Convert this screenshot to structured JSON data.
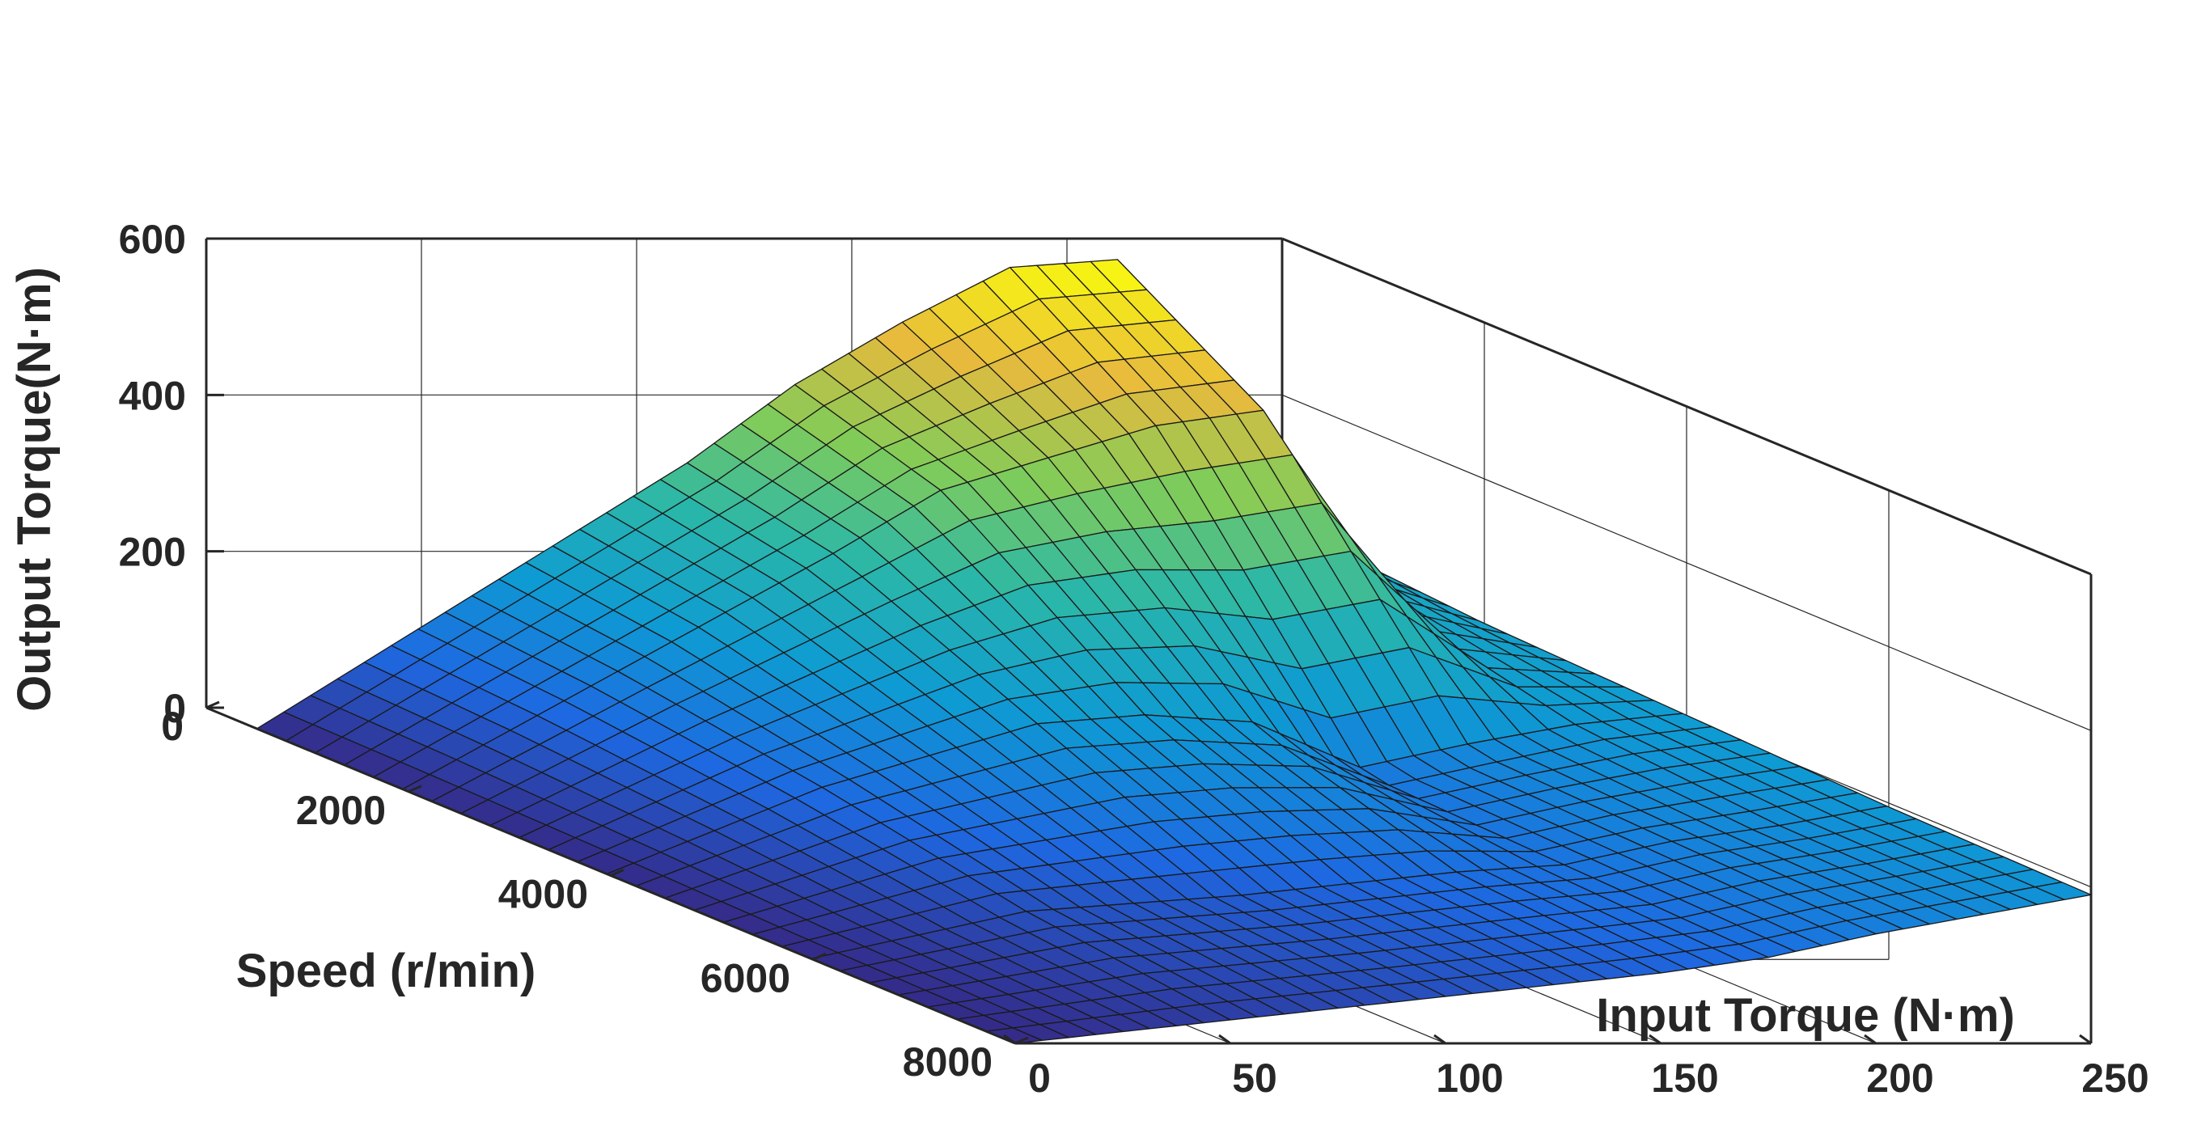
{
  "chart_data": {
    "type": "surface",
    "title": "",
    "xlabel": "Speed (r/min)",
    "ylabel": "Input Torque (N·m)",
    "zlabel": "Output Torque(N·m)",
    "x_ticks": [
      0,
      2000,
      4000,
      6000,
      8000
    ],
    "y_ticks": [
      0,
      50,
      100,
      150,
      200,
      250
    ],
    "z_ticks": [
      0,
      200,
      400,
      600
    ],
    "xlim": [
      0,
      8000
    ],
    "ylim": [
      0,
      250
    ],
    "zlim": [
      0,
      600
    ],
    "grid": true,
    "colormap": "parula",
    "surface_rows_by_input_torque": [
      {
        "input_torque": 0,
        "speed": [
          500,
          2000,
          4000,
          6000,
          8000
        ],
        "output_torque": [
          0,
          0,
          0,
          0,
          0
        ]
      },
      {
        "input_torque": 50,
        "speed": [
          500,
          2000,
          4000,
          6000,
          8000
        ],
        "output_torque": [
          170,
          150,
          110,
          60,
          30
        ]
      },
      {
        "input_torque": 100,
        "speed": [
          500,
          2000,
          4000,
          6000,
          8000
        ],
        "output_torque": [
          340,
          300,
          190,
          80,
          60
        ]
      },
      {
        "input_torque": 125,
        "speed": [
          500,
          2000,
          4000,
          6000,
          8000
        ],
        "output_torque": [
          440,
          380,
          200,
          95,
          75
        ]
      },
      {
        "input_torque": 150,
        "speed": [
          500,
          2000,
          4000,
          6000,
          8000
        ],
        "output_torque": [
          520,
          420,
          190,
          110,
          90
        ]
      },
      {
        "input_torque": 175,
        "speed": [
          500,
          2000,
          4000,
          6000,
          8000
        ],
        "output_torque": [
          590,
          460,
          130,
          120,
          110
        ]
      },
      {
        "input_torque": 200,
        "speed": [
          500,
          2000,
          4000,
          6000,
          8000
        ],
        "output_torque": [
          600,
          480,
          160,
          150,
          140
        ]
      },
      {
        "input_torque": 225,
        "speed": [
          500,
          2000,
          4000,
          6000,
          8000
        ],
        "output_torque": [
          300,
          250,
          190,
          170,
          165
        ]
      },
      {
        "input_torque": 250,
        "speed": [
          500,
          2000,
          4000,
          6000,
          8000
        ],
        "output_torque": [
          230,
          215,
          205,
          195,
          190
        ]
      }
    ],
    "colors": {
      "axis": "#262626",
      "grid": "#262626",
      "mesh_edge": "#1a1a1a",
      "colormap_stops": [
        "#352a87",
        "#1e68e1",
        "#0e9bd3",
        "#2ab7a9",
        "#81cc59",
        "#e8ba3d",
        "#f9fb0e"
      ]
    }
  }
}
